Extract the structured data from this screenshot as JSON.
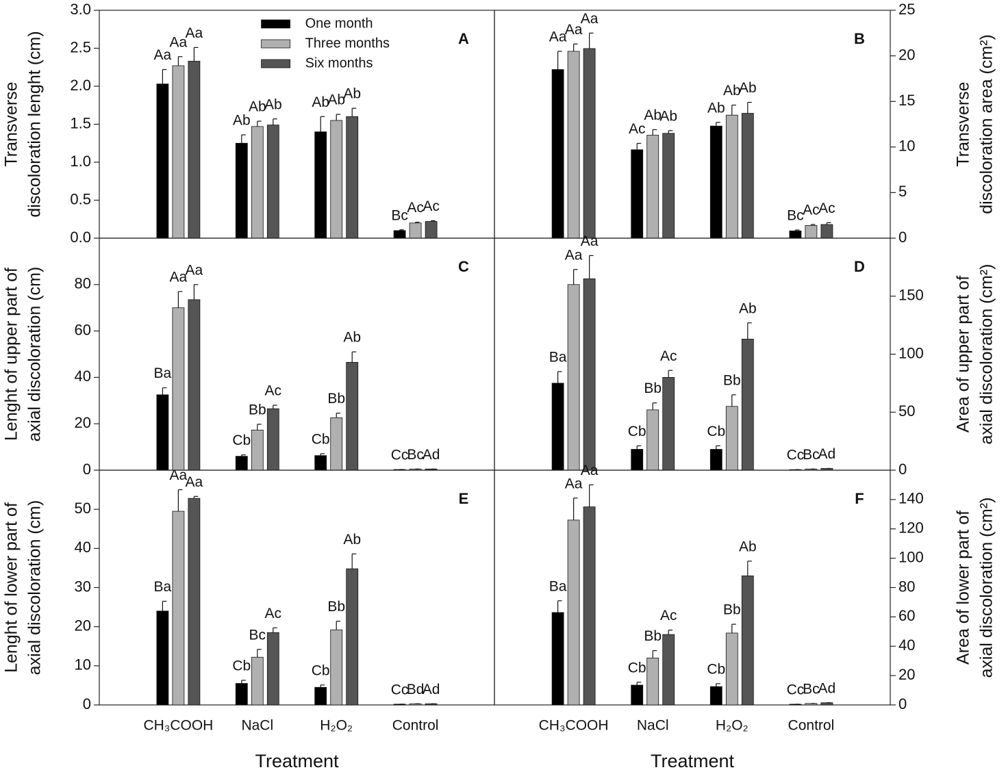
{
  "chart_data": [
    {
      "type": "bar",
      "label": "A",
      "ylabel": [
        "Transverse",
        "discoloration lenght (cm)"
      ],
      "yaxis": "left",
      "ylim": [
        0,
        3
      ],
      "yticks": [
        {
          "value": 0,
          "label": "0.0"
        },
        0.5,
        {
          "value": 1,
          "label": "1.0"
        },
        1.5,
        {
          "value": 2,
          "label": "2.0"
        },
        2.5,
        {
          "value": 3,
          "label": "3.0"
        }
      ],
      "legend": "upper center",
      "series": [
        {
          "name": "One month",
          "color": "#000000",
          "values": [
            2.03,
            1.25,
            1.4,
            0.1
          ],
          "errors": [
            0.19,
            0.11,
            0.2,
            0.01
          ],
          "letters": [
            "Aa",
            "Ab",
            "Ab",
            "Bc"
          ]
        },
        {
          "name": "Three months",
          "color": "#b0b0b0",
          "values": [
            2.27,
            1.47,
            1.55,
            0.2
          ],
          "errors": [
            0.12,
            0.07,
            0.08,
            0.01
          ],
          "letters": [
            "Aa",
            "Ab",
            "Ab",
            "Ac"
          ]
        },
        {
          "name": "Six months",
          "color": "#555555",
          "values": [
            2.33,
            1.49,
            1.6,
            0.22
          ],
          "errors": [
            0.18,
            0.08,
            0.11,
            0.01
          ],
          "letters": [
            "Aa",
            "Ab",
            "Ab",
            "Ac"
          ]
        }
      ]
    },
    {
      "type": "bar",
      "label": "B",
      "ylabel": [
        "Transverse",
        "discoloration area (cm²)"
      ],
      "yaxis": "right",
      "ylim": [
        0,
        25
      ],
      "yticks": [
        0,
        5,
        10,
        15,
        20,
        25
      ],
      "series": [
        {
          "color": "#000000",
          "values": [
            18.5,
            9.7,
            12.3,
            0.8
          ],
          "errors": [
            2.0,
            0.7,
            0.4,
            0.1
          ],
          "letters": [
            "Aa",
            "Ac",
            "Ab",
            "Bc"
          ]
        },
        {
          "color": "#b0b0b0",
          "values": [
            20.5,
            11.3,
            13.5,
            1.4
          ],
          "errors": [
            0.8,
            0.6,
            1.1,
            0.1
          ],
          "letters": [
            "Aa",
            "Ab",
            "Ab",
            "Ac"
          ]
        },
        {
          "color": "#555555",
          "values": [
            20.8,
            11.5,
            13.7,
            1.5
          ],
          "errors": [
            1.7,
            0.3,
            1.2,
            0.2
          ],
          "letters": [
            "Aa",
            "Ab",
            "Ab",
            "Ac"
          ]
        }
      ]
    },
    {
      "type": "bar",
      "label": "C",
      "ylabel": [
        "Lenght of upper part of",
        "axial discoloration (cm)"
      ],
      "yaxis": "left",
      "ylim": [
        0,
        100
      ],
      "yticks": [
        0,
        20,
        40,
        60,
        80
      ],
      "series": [
        {
          "color": "#000000",
          "values": [
            32.5,
            6,
            6.3,
            0.3
          ],
          "errors": [
            3,
            0.6,
            0.8,
            0
          ],
          "letters": [
            "Ba",
            "Cb",
            "Cb",
            "Cc"
          ]
        },
        {
          "color": "#b0b0b0",
          "values": [
            70,
            17.3,
            22.6,
            0.5
          ],
          "errors": [
            7,
            2.5,
            2,
            0
          ],
          "letters": [
            "Aa",
            "Bb",
            "Bb",
            "Bc"
          ]
        },
        {
          "color": "#555555",
          "values": [
            73.5,
            26.5,
            46.5,
            0.5
          ],
          "errors": [
            6.5,
            1.5,
            4.5,
            0
          ],
          "letters": [
            "Aa",
            "Ac",
            "Ab",
            "Ad"
          ]
        }
      ]
    },
    {
      "type": "bar",
      "label": "D",
      "ylabel": [
        "Area of upper part of",
        "axial discoloration (cm²)"
      ],
      "yaxis": "right",
      "ylim": [
        0,
        200
      ],
      "yticks": [
        0,
        50,
        100,
        150
      ],
      "series": [
        {
          "color": "#000000",
          "values": [
            75,
            18,
            18,
            0.5
          ],
          "errors": [
            10,
            3,
            3,
            0
          ],
          "letters": [
            "Ba",
            "Cb",
            "Cb",
            "Cc"
          ]
        },
        {
          "color": "#b0b0b0",
          "values": [
            160,
            52,
            55,
            1
          ],
          "errors": [
            13,
            6,
            10,
            0
          ],
          "letters": [
            "Aa",
            "Bb",
            "Bb",
            "Bc"
          ]
        },
        {
          "color": "#555555",
          "values": [
            165,
            80,
            113,
            1.5
          ],
          "errors": [
            20,
            6,
            14,
            0
          ],
          "letters": [
            "Aa",
            "Ac",
            "Ab",
            "Ad"
          ]
        }
      ]
    },
    {
      "type": "bar",
      "label": "E",
      "ylabel": [
        "Lenght of lower part of",
        "axial discoloration (cm)"
      ],
      "yaxis": "left",
      "ylim": [
        0,
        60
      ],
      "yticks": [
        0,
        10,
        20,
        30,
        40,
        50
      ],
      "categories": [
        "CH₃COOH",
        "NaCl",
        "H₂O₂",
        "Control"
      ],
      "xlabel": "Treatment",
      "series": [
        {
          "color": "#000000",
          "values": [
            24,
            5.5,
            4.5,
            0.2
          ],
          "errors": [
            2.5,
            0.8,
            0.6,
            0
          ],
          "letters": [
            "Ba",
            "Cb",
            "Cb",
            "Cc"
          ]
        },
        {
          "color": "#b0b0b0",
          "values": [
            49.5,
            12.2,
            19.2,
            0.3
          ],
          "errors": [
            5.5,
            2,
            2.2,
            0
          ],
          "letters": [
            "Aa",
            "Bc",
            "Bb",
            "Bd"
          ]
        },
        {
          "color": "#555555",
          "values": [
            52.8,
            18.5,
            34.8,
            0.3
          ],
          "errors": [
            0.5,
            1.2,
            3.8,
            0
          ],
          "letters": [
            "Aa",
            "Ac",
            "Ab",
            "Ad"
          ]
        }
      ]
    },
    {
      "type": "bar",
      "label": "F",
      "ylabel": [
        "Area of lower part of",
        "axial discoloration (cm²)"
      ],
      "yaxis": "right",
      "ylim": [
        0,
        160
      ],
      "yticks": [
        0,
        20,
        40,
        60,
        80,
        100,
        120,
        140
      ],
      "categories": [
        "CH₃COOH",
        "NaCl",
        "H₂O₂",
        "Control"
      ],
      "xlabel": "Treatment",
      "series": [
        {
          "color": "#000000",
          "values": [
            63,
            13.5,
            12.5,
            0.5
          ],
          "errors": [
            8,
            2,
            2,
            0
          ],
          "letters": [
            "Ba",
            "Cb",
            "Cb",
            "Cc"
          ]
        },
        {
          "color": "#b0b0b0",
          "values": [
            126,
            32,
            49,
            1
          ],
          "errors": [
            15,
            5,
            6,
            0
          ],
          "letters": [
            "Aa",
            "Bb",
            "Bb",
            "Bc"
          ]
        },
        {
          "color": "#555555",
          "values": [
            135,
            48,
            88,
            1.5
          ],
          "errors": [
            15,
            3,
            10,
            0
          ],
          "letters": [
            "Aa",
            "Ac",
            "Ab",
            "Ad"
          ]
        }
      ]
    }
  ]
}
